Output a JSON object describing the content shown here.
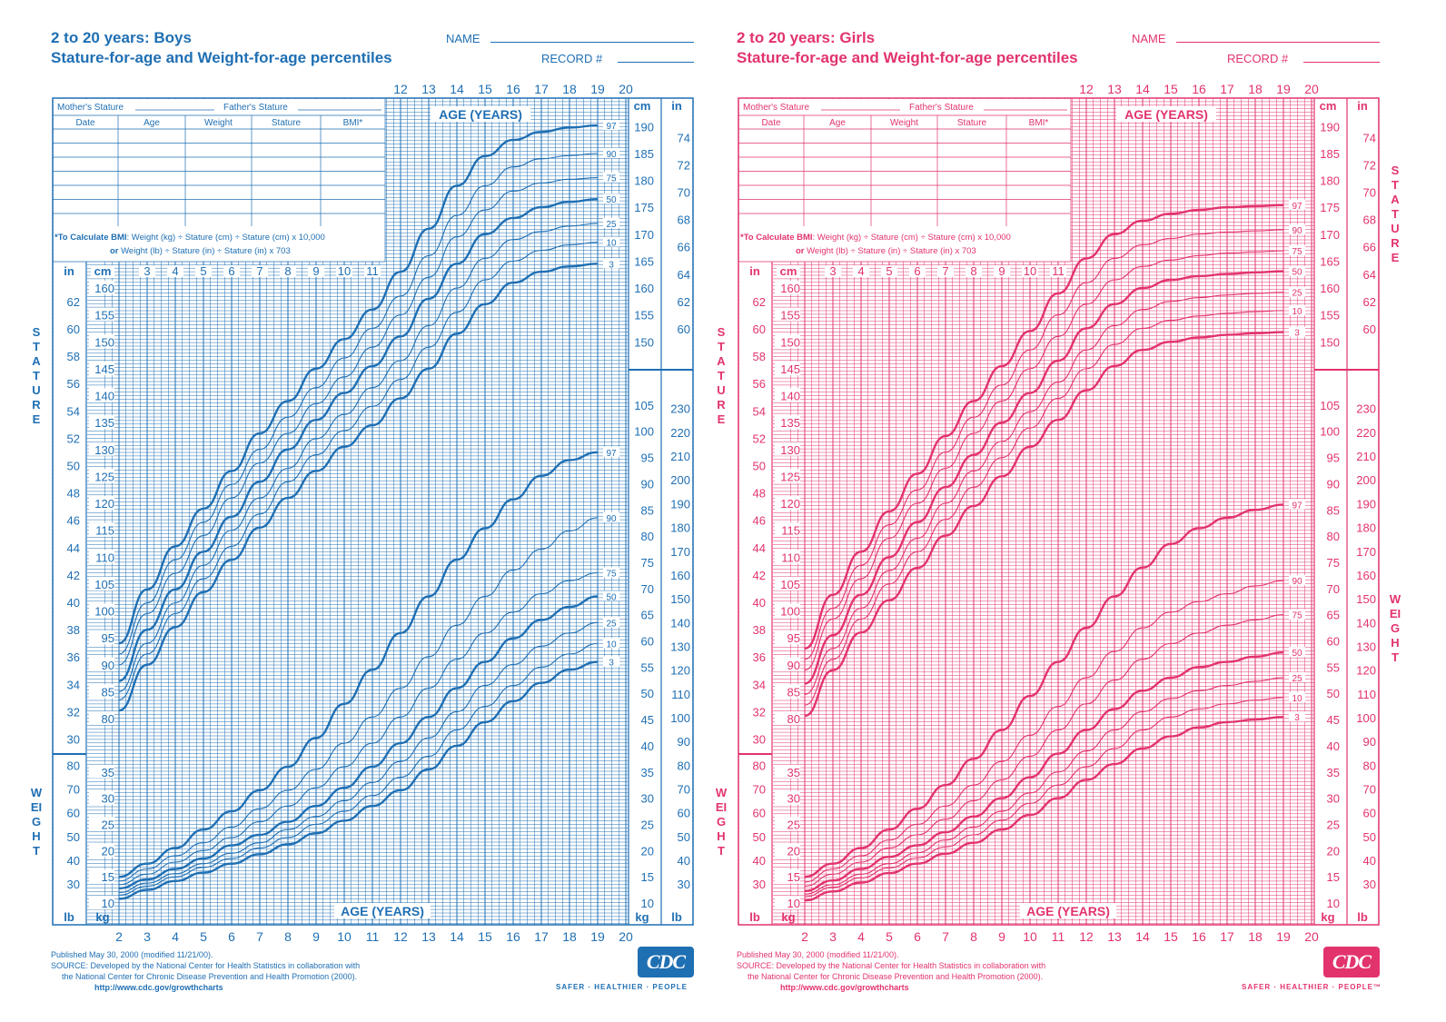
{
  "panels": [
    {
      "id": "boys",
      "color": "#1f6fb3",
      "title_line1": "2 to 20 years: Boys",
      "title_line2": "Stature-for-age and Weight-for-age percentiles",
      "name_label": "NAME",
      "record_label": "RECORD #",
      "table": {
        "mothers_stature": "Mother's Stature",
        "fathers_stature": "Father's Stature",
        "columns": [
          "Date",
          "Age",
          "Weight",
          "Stature",
          "BMI*"
        ],
        "bmi_note_bold": "*To Calculate BMI",
        "bmi_note_1": ": Weight (kg) ÷ Stature (cm) ÷ Stature (cm) x 10,000",
        "bmi_note_or": "or",
        "bmi_note_2": " Weight (lb) ÷ Stature (in) ÷ Stature (in) x 703"
      },
      "age_label": "AGE (YEARS)",
      "unit_in": "in",
      "unit_cm": "cm",
      "unit_kg": "kg",
      "unit_lb": "lb",
      "stature_label": "STATURE",
      "weight_label": "WEIGHT",
      "published": "Published May 30, 2000 (modified 11/21/00).",
      "source_1": "SOURCE: Developed by the National Center for Health Statistics in collaboration with",
      "source_2": "the National Center for Chronic Disease Prevention and Health Promotion (2000).",
      "url": "http://www.cdc.gov/growthcharts",
      "logo": "CDC",
      "tagline": "SAFER · HEALTHIER · PEOPLE"
    },
    {
      "id": "girls",
      "color": "#e2336d",
      "title_line1": "2 to 20 years: Girls",
      "title_line2": "Stature-for-age and Weight-for-age percentiles",
      "name_label": "NAME",
      "record_label": "RECORD #",
      "table": {
        "mothers_stature": "Mother's Stature",
        "fathers_stature": "Father's Stature",
        "columns": [
          "Date",
          "Age",
          "Weight",
          "Stature",
          "BMI*"
        ],
        "bmi_note_bold": "*To Calculate BMI",
        "bmi_note_1": ": Weight (kg) ÷ Stature (cm) ÷ Stature (cm) x 10,000",
        "bmi_note_or": "or",
        "bmi_note_2": " Weight (lb) ÷ Stature (in) ÷ Stature (in) x 703"
      },
      "age_label": "AGE (YEARS)",
      "unit_in": "in",
      "unit_cm": "cm",
      "unit_kg": "kg",
      "unit_lb": "lb",
      "stature_label": "STATURE",
      "weight_label": "WEIGHT",
      "published": "Published May 30, 2000 (modified 11/21/00).",
      "source_1": "SOURCE: Developed by the National Center for Health Statistics in collaboration with",
      "source_2": "the National Center for Chronic Disease Prevention and Health Promotion (2000).",
      "url": "http://www.cdc.gov/growthcharts",
      "logo": "CDC",
      "tagline": "SAFER · HEALTHIER · PEOPLE™"
    }
  ],
  "chart_data": [
    {
      "type": "line",
      "title": "2 to 20 years: Boys — Stature-for-age and Weight-for-age percentiles",
      "xlabel": "AGE (YEARS)",
      "x": [
        2,
        3,
        4,
        5,
        6,
        7,
        8,
        9,
        10,
        11,
        12,
        13,
        14,
        15,
        16,
        17,
        18,
        19,
        20
      ],
      "xlim": [
        2,
        20
      ],
      "stature": {
        "ylabel": "STATURE (cm)",
        "ylim": [
          77,
          198
        ],
        "series": [
          {
            "name": "97",
            "values": [
              94,
              104,
              112,
              119,
              126,
              133,
              139,
              145,
              150.5,
              156,
              163,
              171,
              179,
              184.5,
              187.5,
              189,
              189.8,
              190.2,
              190.5
            ]
          },
          {
            "name": "90",
            "values": [
              92,
              101.5,
              109.5,
              116.5,
              123.5,
              130,
              136,
              141.5,
              147,
              152.5,
              158.5,
              166,
              173.5,
              179,
              182.5,
              184,
              184.6,
              185,
              185.2
            ]
          },
          {
            "name": "75",
            "values": [
              90,
              99.5,
              107,
              114,
              121,
              127.5,
              133,
              138.5,
              143.5,
              149,
              155,
              162,
              169.5,
              174.5,
              178,
              179.5,
              180.2,
              180.5,
              180.8
            ]
          },
          {
            "name": "50",
            "values": [
              87,
              96.5,
              104,
              111,
              117.5,
              124,
              130,
              135.5,
              140.5,
              145.5,
              151,
              158,
              164.5,
              170,
              173,
              175,
              176,
              176.5,
              176.8
            ]
          },
          {
            "name": "25",
            "values": [
              85,
              94,
              101.5,
              108.5,
              115,
              121,
              126.5,
              132,
              136.5,
              141.5,
              146.5,
              153,
              160,
              165.5,
              169,
              170.5,
              171.5,
              172,
              172.2
            ]
          },
          {
            "name": "10",
            "values": [
              83.5,
              92,
              99.5,
              106,
              112,
              118,
              124,
              129,
              133.5,
              138,
              143,
              149,
              155.5,
              161.5,
              165,
              167,
              168,
              168.5,
              168.8
            ]
          },
          {
            "name": "3",
            "values": [
              81.5,
              90,
              97,
              103.5,
              109.5,
              115.5,
              121,
              126,
              130.5,
              134.5,
              139.5,
              145,
              151.5,
              157,
              161,
              163,
              164,
              164.5,
              164.8
            ]
          }
        ]
      },
      "weight": {
        "ylabel": "WEIGHT (kg)",
        "ylim": [
          9,
          115
        ],
        "series": [
          {
            "name": "97",
            "values": [
              15,
              17.5,
              20.5,
              24,
              27.5,
              31.5,
              36,
              41.5,
              48,
              54.5,
              61.5,
              68.5,
              75.5,
              81.5,
              87,
              91.5,
              94.5,
              96,
              97
            ]
          },
          {
            "name": "90",
            "values": [
              14.2,
              16.5,
              19,
              21.5,
              24.5,
              28,
              31.5,
              35.5,
              40.5,
              45.5,
              51,
              57,
              63,
              68.5,
              73.5,
              77.5,
              81,
              83.5,
              85
            ]
          },
          {
            "name": "75",
            "values": [
              13.5,
              15.5,
              17.8,
              20,
              22.5,
              25.5,
              28.5,
              32,
              36,
              40.5,
              45.5,
              51,
              56.5,
              61.5,
              65.5,
              69,
              71.5,
              73,
              74
            ]
          },
          {
            "name": "50",
            "values": [
              12.8,
              14.5,
              16.5,
              18.5,
              21,
              23,
              25.5,
              28.5,
              32,
              36,
              40.5,
              45.5,
              51,
              56,
              60.5,
              64,
              66.5,
              68.5,
              70
            ]
          },
          {
            "name": "25",
            "values": [
              12,
              13.8,
              15.6,
              17.5,
              19.5,
              21.5,
              24,
              26.5,
              29.5,
              33,
              37,
              41.5,
              46.5,
              51.5,
              55.5,
              59,
              61.5,
              63.5,
              64.5
            ]
          },
          {
            "name": "10",
            "values": [
              11.5,
              13.2,
              15,
              16.8,
              18.5,
              20.5,
              22.5,
              25,
              27.5,
              30.5,
              34,
              38,
              43,
              47.5,
              51.5,
              55,
              57.5,
              59.5,
              60.5
            ]
          },
          {
            "name": "3",
            "values": [
              10.8,
              12.5,
              14.2,
              15.8,
              17.5,
              19.3,
              21.2,
              23.3,
              25.7,
              28.5,
              31.5,
              35.5,
              40,
              44.5,
              48.5,
              52,
              54.5,
              56,
              57
            ]
          }
        ]
      }
    },
    {
      "type": "line",
      "title": "2 to 20 years: Girls — Stature-for-age and Weight-for-age percentiles",
      "xlabel": "AGE (YEARS)",
      "x": [
        2,
        3,
        4,
        5,
        6,
        7,
        8,
        9,
        10,
        11,
        12,
        13,
        14,
        15,
        16,
        17,
        18,
        19,
        20
      ],
      "xlim": [
        2,
        20
      ],
      "stature": {
        "ylabel": "STATURE (cm)",
        "ylim": [
          77,
          198
        ],
        "series": [
          {
            "name": "97",
            "values": [
              93,
              103,
              111,
              118.5,
              125.5,
              132.5,
              139,
              145.5,
              152,
              159,
              165.5,
              170,
              172.5,
              173.8,
              174.5,
              175,
              175.2,
              175.4,
              175.5
            ]
          },
          {
            "name": "90",
            "values": [
              91,
              100.5,
              108.5,
              116,
              122.5,
              129.5,
              136,
              142,
              148.5,
              155,
              161,
              165.5,
              168,
              169.2,
              170,
              170.4,
              170.6,
              170.8,
              170.9
            ]
          },
          {
            "name": "75",
            "values": [
              89,
              98.5,
              106,
              113.5,
              120,
              126.5,
              133,
              139,
              145,
              151,
              157,
              161.5,
              164,
              165.2,
              166,
              166.5,
              166.7,
              166.9,
              167
            ]
          },
          {
            "name": "50",
            "values": [
              86.5,
              95.5,
              103,
              110,
              116.5,
              123,
              129,
              135,
              140.5,
              146.5,
              152.5,
              157,
              160,
              161.5,
              162.2,
              162.6,
              162.9,
              163.1,
              163.2
            ]
          },
          {
            "name": "25",
            "values": [
              84.5,
              93,
              100.5,
              107.5,
              113.5,
              120,
              126,
              131.5,
              137,
              142.5,
              148.5,
              153,
              156,
              157.5,
              158.2,
              158.7,
              159,
              159.2,
              159.3
            ]
          },
          {
            "name": "10",
            "values": [
              82.5,
              91,
              98.5,
              105,
              111,
              117,
              123,
              128.5,
              134,
              139.5,
              145,
              149.5,
              152.5,
              154,
              154.8,
              155.3,
              155.6,
              155.8,
              155.9
            ]
          },
          {
            "name": "3",
            "values": [
              80.5,
              89,
              96,
              102,
              108,
              114,
              119.5,
              125,
              130.5,
              135.5,
              141,
              145.5,
              148.5,
              150,
              150.8,
              151.3,
              151.6,
              151.8,
              151.9
            ]
          }
        ]
      },
      "weight": {
        "ylabel": "WEIGHT (kg)",
        "ylim": [
          9,
          115
        ],
        "series": [
          {
            "name": "97",
            "values": [
              15,
              17.5,
              20.5,
              24,
              28,
              32.5,
              37.5,
              43,
              49.5,
              56,
              62.5,
              68.5,
              74,
              78.5,
              81.5,
              83.5,
              85,
              86,
              86.5
            ]
          },
          {
            "name": "90",
            "values": [
              14,
              16.5,
              19,
              22,
              25,
              28.5,
              32.5,
              37,
              42,
              47.5,
              53,
              58,
              62.5,
              65.5,
              67.5,
              69,
              70.5,
              71.5,
              72
            ]
          },
          {
            "name": "75",
            "values": [
              13.2,
              15.5,
              17.8,
              20.5,
              23,
              26,
              29.5,
              33.5,
              38,
              43,
              48,
              52.5,
              56.5,
              59.5,
              61.5,
              63,
              64,
              65,
              65.5
            ]
          },
          {
            "name": "50",
            "values": [
              12.3,
              14.3,
              16.5,
              18.8,
              21,
              23.5,
              26.5,
              30,
              34,
              38.5,
              43,
              47,
              50.5,
              53,
              55,
              56,
              57,
              57.8,
              58.5
            ]
          },
          {
            "name": "25",
            "values": [
              11.7,
              13.5,
              15.5,
              17.5,
              19.6,
              22,
              24.5,
              27.5,
              31,
              35,
              39,
              43,
              46.5,
              49,
              50.5,
              51.5,
              52.3,
              53,
              53.5
            ]
          },
          {
            "name": "10",
            "values": [
              11.2,
              13,
              14.8,
              16.7,
              18.6,
              20.7,
              23,
              25.8,
              29,
              32.5,
              36,
              39.5,
              43,
              45.5,
              47,
              48,
              48.7,
              49.2,
              49.5
            ]
          },
          {
            "name": "3",
            "values": [
              10.5,
              12.2,
              13.9,
              15.7,
              17.5,
              19.4,
              21.5,
              24,
              26.8,
              30,
              33.5,
              36.5,
              39.5,
              41.8,
              43.5,
              44.5,
              45,
              45.5,
              45.7
            ]
          }
        ]
      }
    }
  ]
}
